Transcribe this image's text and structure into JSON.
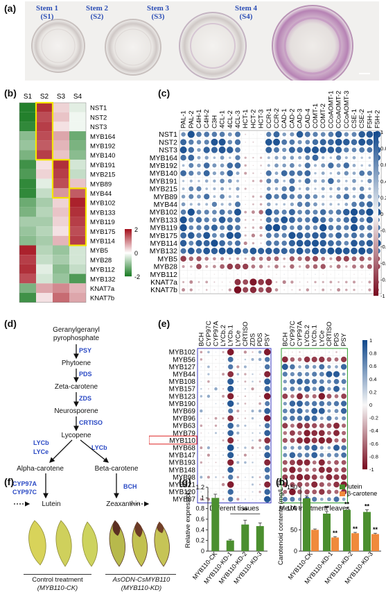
{
  "panel_labels": {
    "a": "(a)",
    "b": "(b)",
    "c": "(c)",
    "d": "(d)",
    "e": "(e)",
    "f": "(f)",
    "g": "(g)",
    "h": "(h)"
  },
  "panel_a": {
    "stems": [
      {
        "line1": "Stem 1",
        "line2": "(S1)"
      },
      {
        "line1": "Stem 2",
        "line2": "(S2)"
      },
      {
        "line1": "Stem 3",
        "line2": "(S3)"
      },
      {
        "line1": "Stem 4",
        "line2": "(S4)"
      }
    ]
  },
  "panel_b": {
    "columns": [
      "S1",
      "S2",
      "S3",
      "S4"
    ],
    "rows": [
      "NST1",
      "NST2",
      "NST3",
      "MYB164",
      "MYB192",
      "MYB140",
      "MYB191",
      "MYB215",
      "MYB89",
      "MYB44",
      "MYB102",
      "MYB133",
      "MYB119",
      "MYB175",
      "MYB114",
      "MYB5",
      "MYB28",
      "MYB112",
      "MYB132",
      "KNAT7a",
      "KNAT7b"
    ],
    "values": [
      [
        -1.5,
        1.4,
        0.3,
        -0.2
      ],
      [
        -1.5,
        1.2,
        0.4,
        -0.1
      ],
      [
        -1.4,
        1.3,
        0.2,
        -0.1
      ],
      [
        -0.8,
        1.2,
        0.6,
        -1.0
      ],
      [
        -0.7,
        1.1,
        0.5,
        -0.9
      ],
      [
        -0.9,
        1.3,
        0.4,
        -0.8
      ],
      [
        -1.3,
        0.2,
        1.4,
        -0.3
      ],
      [
        -1.2,
        0.3,
        1.3,
        -0.4
      ],
      [
        -1.4,
        -0.2,
        1.2,
        0.4
      ],
      [
        -1.4,
        -0.4,
        0.7,
        1.1
      ],
      [
        -1.0,
        -0.6,
        0.3,
        1.5
      ],
      [
        -0.9,
        -0.5,
        0.4,
        1.4
      ],
      [
        -0.6,
        -0.6,
        0.3,
        1.3
      ],
      [
        -0.7,
        -0.5,
        0.2,
        1.2
      ],
      [
        -0.8,
        -0.6,
        0.5,
        1.3
      ],
      [
        1.5,
        -0.5,
        -0.7,
        -0.3
      ],
      [
        1.3,
        -0.4,
        -0.6,
        -0.3
      ],
      [
        1.4,
        -0.2,
        -0.8,
        -0.4
      ],
      [
        1.2,
        -0.3,
        -0.7,
        -1.2
      ],
      [
        -0.9,
        0.6,
        0.8,
        0.5
      ],
      [
        -1.3,
        0.2,
        1.0,
        0.6
      ]
    ],
    "legend_ticks": [
      "2",
      "0",
      "-2"
    ]
  },
  "panel_c": {
    "rows": [
      "NST1",
      "NST2",
      "NST3",
      "MYB164",
      "MYB192",
      "MYB140",
      "MYB191",
      "MYB215",
      "MYB89",
      "MYB44",
      "MYB102",
      "MYB133",
      "MYB119",
      "MYB175",
      "MYB114",
      "MYB132",
      "MYB5",
      "MYB28",
      "MYB112",
      "KNAT7a",
      "KNAT7b"
    ],
    "columns": [
      "PAL-1",
      "PAL-2",
      "C4H-1",
      "C4H-2",
      "C3H",
      "4CL-1",
      "4CL-2",
      "4CL-3",
      "HCT-1",
      "HCT-2",
      "HCT-3",
      "CCR-1",
      "CCR-2",
      "CAD-1",
      "CAD-2",
      "CAD-3",
      "CAD-4",
      "COMT-1",
      "COMT-2",
      "CCoAOMT-1",
      "CCoAOMT-2",
      "CCoAOMT-3",
      "CSE-1",
      "CSE-2",
      "F5H-1",
      "F5H-2"
    ],
    "legend_ticks": [
      "1",
      "0.8",
      "0.6",
      "0.4",
      "0.2",
      "0",
      "-0.2",
      "-0.4",
      "-0.6",
      "-0.8",
      "-1"
    ]
  },
  "panel_d": {
    "nodes": {
      "ggpp1": "Geranylgeranyl",
      "ggpp2": "pyrophosphate",
      "phytoene": "Phytoene",
      "zeta": "Zeta-carotene",
      "neuro": "Neurosporene",
      "lycopene": "Lycopene",
      "alpha": "Alpha-carotene",
      "beta": "Beta-carotene",
      "lutein": "Lutein",
      "zeax": "Zeaxanthin"
    },
    "enzymes": {
      "psy": "PSY",
      "pds": "PDS",
      "zds": "ZDS",
      "crtiso": "CRTISO",
      "lycb1": "LYCb",
      "lyce": "LYCe",
      "lycb2": "LYCb",
      "cyp97a": "CYP97A",
      "cyp97c": "CYP97C",
      "bch": "BCH"
    }
  },
  "panel_e": {
    "rows": [
      "MYB102",
      "MYB56",
      "MYB127",
      "MYB44",
      "MYB108",
      "MYB157",
      "MYB123",
      "MYB190",
      "MYB69",
      "MYB96",
      "MYB63",
      "MYB79",
      "MYB110",
      "MYB68",
      "MYB147",
      "MYB193",
      "MYB148",
      "MYB98",
      "MYB221",
      "MYB120",
      "MYB87"
    ],
    "columns_left": [
      "BCH",
      "CYP97C",
      "CYP97A",
      "LYCb.2",
      "LYCb.1",
      "LYCe",
      "CRTISO",
      "ZDS",
      "PDS",
      "PSY"
    ],
    "columns_right": [
      "BCH",
      "CYP97C",
      "CYP97A",
      "LYCb.2",
      "LYCb.1",
      "LYCe",
      "CRTISO",
      "PDS",
      "PSY"
    ],
    "caption_left": "Different tissues",
    "caption_right": "MeJA treatment leaves",
    "highlight_row": "MYB110",
    "legend_ticks": [
      "1",
      "0.8",
      "0.6",
      "0.4",
      "0.2",
      "0",
      "-0.2",
      "-0.4",
      "-0.6",
      "-0.8",
      "-1"
    ]
  },
  "panel_f": {
    "control1": "Control treatment",
    "control2": "(MYB110-CK)",
    "kd1": "AsODN-CsMYB110",
    "kd2": "(MYB110-KD)"
  },
  "chart_data": [
    {
      "type": "bar",
      "panel": "g",
      "categories": [
        "MYB110-CK",
        "MYB110-KD-1",
        "MYB110-KD-2",
        "MYB110-KD-3"
      ],
      "values": [
        1.0,
        0.2,
        0.5,
        0.47
      ],
      "errors": [
        0.07,
        0.02,
        0.08,
        0.06
      ],
      "ylabel": "Relative expression",
      "ylim": [
        0,
        1.2
      ],
      "yticks": [
        "0",
        "0.2",
        "0.4",
        "0.6",
        "0.8",
        "1",
        "1.2"
      ],
      "annotation": "**",
      "color": "#4b8f2f"
    },
    {
      "type": "bar",
      "panel": "h",
      "categories": [
        "MYB110-CK",
        "MYB110-KD-1",
        "MYB110-KD-2",
        "MYB110-KD-3"
      ],
      "series": [
        {
          "name": "lutein",
          "values": [
            124,
            88,
            97,
            92
          ],
          "errors": [
            6,
            5,
            5,
            5
          ],
          "color": "#4b8f2f"
        },
        {
          "name": "β-carotene",
          "values": [
            50,
            32,
            42,
            40
          ],
          "errors": [
            2,
            2,
            2,
            2
          ],
          "color": "#f08a3c"
        }
      ],
      "ylabel": "Carotenoid contents (mg/L FW)",
      "ylim": [
        0,
        150
      ],
      "yticks": [
        "0",
        "50",
        "100",
        "150"
      ],
      "annotation": "**"
    }
  ]
}
